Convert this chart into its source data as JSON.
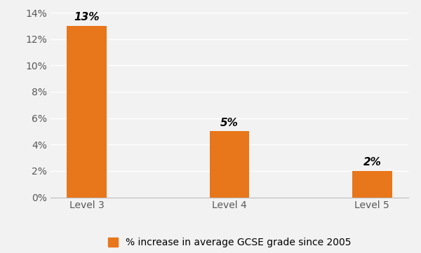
{
  "categories": [
    "Level 3",
    "Level 4",
    "Level 5"
  ],
  "values": [
    13,
    5,
    2
  ],
  "bar_color": "#E8761A",
  "ylim": [
    0,
    14
  ],
  "yticks": [
    0,
    2,
    4,
    6,
    8,
    10,
    12,
    14
  ],
  "ytick_labels": [
    "0%",
    "2%",
    "4%",
    "6%",
    "8%",
    "10%",
    "12%",
    "14%"
  ],
  "bar_labels": [
    "13%",
    "5%",
    "2%"
  ],
  "legend_label": "% increase in average GCSE grade since 2005",
  "background_color": "#f2f2f2",
  "plot_bg_color": "#f2f2f2",
  "grid_color": "#ffffff",
  "tick_color": "#595959",
  "label_fontsize": 10,
  "tick_fontsize": 10,
  "legend_fontsize": 10,
  "bar_label_fontsize": 11,
  "bar_width": 0.28
}
